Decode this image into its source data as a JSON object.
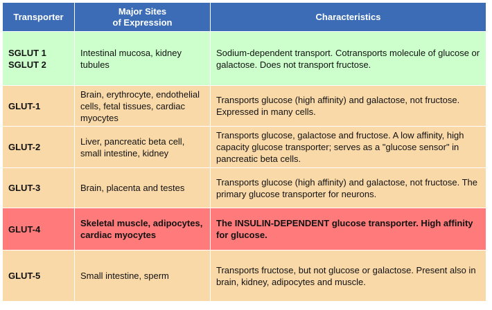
{
  "colors": {
    "header_bg": "#3b6cb5",
    "sglut_row": "#ccffcc",
    "glut_row": "#fad9a9",
    "glut4_row": "#ff7b7b"
  },
  "headers": {
    "transporter": "Transporter",
    "sites": "Major Sites\nof Expression",
    "characteristics": "Characteristics"
  },
  "rows": [
    {
      "transporter": "SGLUT 1\nSGLUT 2",
      "sites": "Intestinal mucosa,  kidney tubules",
      "characteristics": "Sodium-dependent transport. Cotransports molecule of glucose or galactose. Does not transport fructose."
    },
    {
      "transporter": "GLUT-1",
      "sites": "Brain, erythrocyte, endothelial cells, fetal tissues, cardiac myocytes",
      "characteristics": "Transports glucose (high affinity) and galactose, not fructose. Expressed in many cells."
    },
    {
      "transporter": "GLUT-2",
      "sites": "Liver, pancreatic beta cell, small intestine, kidney",
      "characteristics": "Transports glucose, galactose and fructose. A low affinity, high capacity glucose transporter; serves as a \"glucose sensor\" in pancreatic beta cells."
    },
    {
      "transporter": "GLUT-3",
      "sites": "Brain, placenta and testes",
      "characteristics": "Transports glucose (high affinity) and galactose, not fructose. The primary glucose transporter for neurons."
    },
    {
      "transporter": "GLUT-4",
      "sites": "Skeletal muscle, adipocytes, cardiac myocytes",
      "characteristics": "The INSULIN-DEPENDENT glucose transporter. High affinity for glucose."
    },
    {
      "transporter": "GLUT-5",
      "sites": "Small intestine, sperm",
      "characteristics": "Transports fructose, but not glucose or galactose. Present also in brain, kidney, adipocytes and muscle."
    }
  ]
}
